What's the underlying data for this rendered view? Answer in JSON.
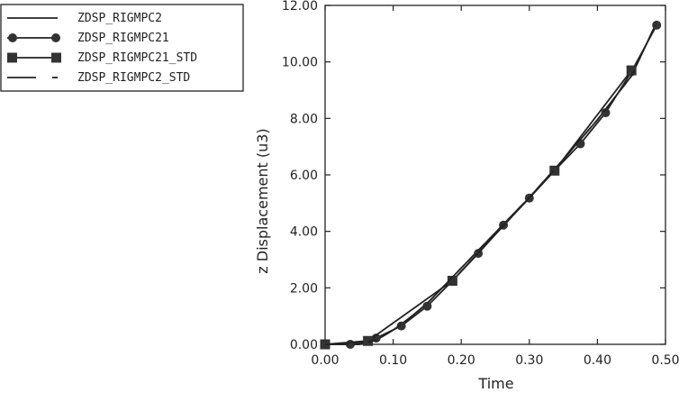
{
  "chart_data": {
    "type": "line",
    "xlabel": "Time",
    "ylabel": "z Displacement (u3)",
    "xlim": [
      0.0,
      0.5
    ],
    "ylim": [
      0.0,
      12.0
    ],
    "xticks": [
      "0.00",
      "0.10",
      "0.20",
      "0.30",
      "0.40",
      "0.50"
    ],
    "yticks": [
      "0.00",
      "2.00",
      "4.00",
      "6.00",
      "8.00",
      "10.00",
      "12.00"
    ],
    "grid": false,
    "legend_position": "top-left outside plot",
    "series": [
      {
        "name": "ZDSP_RIGMPC2",
        "style": "solid line, no markers",
        "x": [
          0.0,
          0.05,
          0.075,
          0.1,
          0.125,
          0.15,
          0.2,
          0.25,
          0.3,
          0.35,
          0.4,
          0.45,
          0.485
        ],
        "y": [
          0.0,
          0.0,
          0.15,
          0.5,
          0.95,
          1.45,
          2.7,
          3.95,
          5.2,
          6.55,
          7.95,
          9.5,
          11.3
        ]
      },
      {
        "name": "ZDSP_RIGMPC21",
        "style": "line with circle markers",
        "x": [
          0.0,
          0.037,
          0.063,
          0.075,
          0.112,
          0.15,
          0.187,
          0.225,
          0.262,
          0.3,
          0.337,
          0.375,
          0.412,
          0.45,
          0.487
        ],
        "y": [
          0.0,
          0.0,
          0.12,
          0.22,
          0.65,
          1.35,
          2.25,
          3.22,
          4.22,
          5.18,
          6.15,
          7.1,
          8.2,
          9.65,
          11.3
        ]
      },
      {
        "name": "ZDSP_RIGMPC21_STD",
        "style": "line with square markers",
        "x": [
          0.0,
          0.063,
          0.187,
          0.337,
          0.45
        ],
        "y": [
          0.0,
          0.12,
          2.25,
          6.15,
          9.7
        ]
      },
      {
        "name": "ZDSP_RIGMPC2_STD",
        "style": "dashed line",
        "x": [
          0.0,
          0.05,
          0.075,
          0.1,
          0.125,
          0.15,
          0.2,
          0.25,
          0.3,
          0.35,
          0.4,
          0.45,
          0.485
        ],
        "y": [
          0.0,
          0.0,
          0.15,
          0.5,
          0.95,
          1.45,
          2.7,
          3.95,
          5.2,
          6.55,
          7.95,
          9.5,
          11.3
        ]
      }
    ]
  },
  "colors": {
    "line": "#222222",
    "marker": "#333333",
    "frame": "#222222"
  }
}
